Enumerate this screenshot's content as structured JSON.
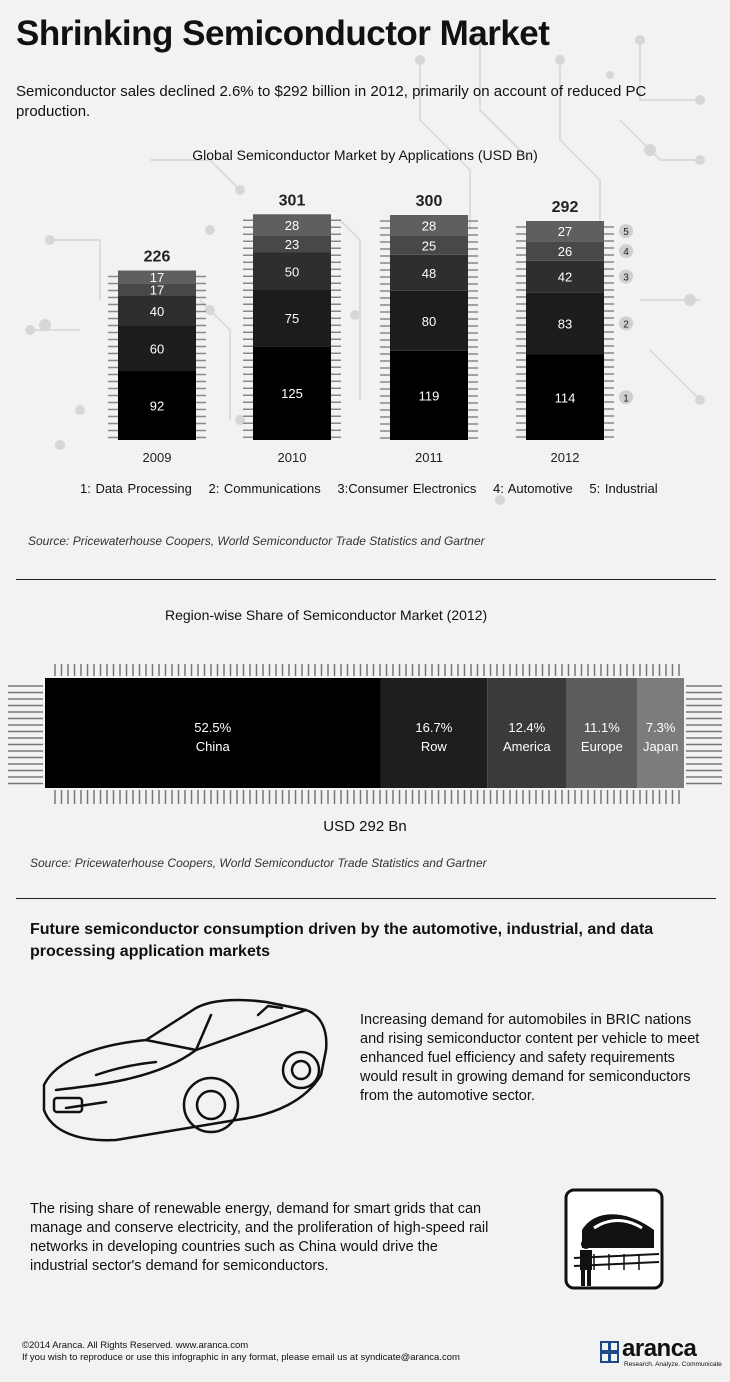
{
  "title": "Shrinking Semiconductor Market",
  "subtitle": "Semiconductor sales declined 2.6% to $292 billion in 2012, primarily on account of reduced PC production.",
  "chart_data": [
    {
      "type": "bar",
      "title": "Global Semiconductor Market by Applications (USD Bn)",
      "categories": [
        "2009",
        "2010",
        "2011",
        "2012"
      ],
      "totals": [
        226,
        301,
        300,
        292
      ],
      "series": [
        {
          "name": "1: Data Processing",
          "values": [
            92,
            125,
            119,
            114
          ]
        },
        {
          "name": "2: Communications",
          "values": [
            60,
            75,
            80,
            83
          ]
        },
        {
          "name": "3:Consumer Electronics",
          "values": [
            40,
            50,
            48,
            42
          ]
        },
        {
          "name": "4: Automotive",
          "values": [
            17,
            23,
            25,
            26
          ]
        },
        {
          "name": "5: Industrial",
          "values": [
            17,
            28,
            28,
            27
          ]
        }
      ],
      "series_markers": [
        "1",
        "2",
        "3",
        "4",
        "5"
      ],
      "colors": [
        "#000000",
        "#1c1c1c",
        "#2e2e2e",
        "#484848",
        "#5f5f5f"
      ],
      "source": "Source: Pricewaterhouse Coopers, World Semiconductor Trade Statistics and Gartner"
    },
    {
      "type": "bar",
      "title": "Region-wise Share of Semiconductor Market (2012)",
      "categories": [
        "China",
        "Row",
        "America",
        "Europe",
        "Japan"
      ],
      "values": [
        52.5,
        16.7,
        12.4,
        11.1,
        7.3
      ],
      "labels": [
        "52.5%",
        "16.7%",
        "12.4%",
        "11.1%",
        "7.3%"
      ],
      "colors": [
        "#000000",
        "#1e1e1e",
        "#3a3a3a",
        "#5c5c5c",
        "#7c7c7c"
      ],
      "total_label": "USD 292 Bn",
      "source": "Source: Pricewaterhouse Coopers, World Semiconductor Trade Statistics and Gartner"
    }
  ],
  "future": {
    "heading": "Future semiconductor consumption driven by the automotive, industrial, and data processing application markets",
    "automotive_text": "Increasing demand for automobiles in BRIC nations and rising semiconductor content per vehicle to meet enhanced fuel efficiency and safety requirements would result in growing demand for semiconductors from the automotive sector.",
    "industrial_text": "The rising share of renewable energy, demand for smart grids that can manage and conserve electricity, and the proliferation of high-speed rail networks in developing countries such as China would drive the industrial sector's demand for semiconductors.",
    "car_icon": "car-icon",
    "train_icon": "high-speed-train-icon"
  },
  "footer": {
    "copyright": "©2014 Aranca. All Rights Reserved. www.aranca.com",
    "reproduce": "If you wish to reproduce or use this infographic in any format, please email us at syndicate@aranca.com",
    "logo_word": "aranca",
    "logo_tagline": "Research. Analyze. Communicate"
  }
}
